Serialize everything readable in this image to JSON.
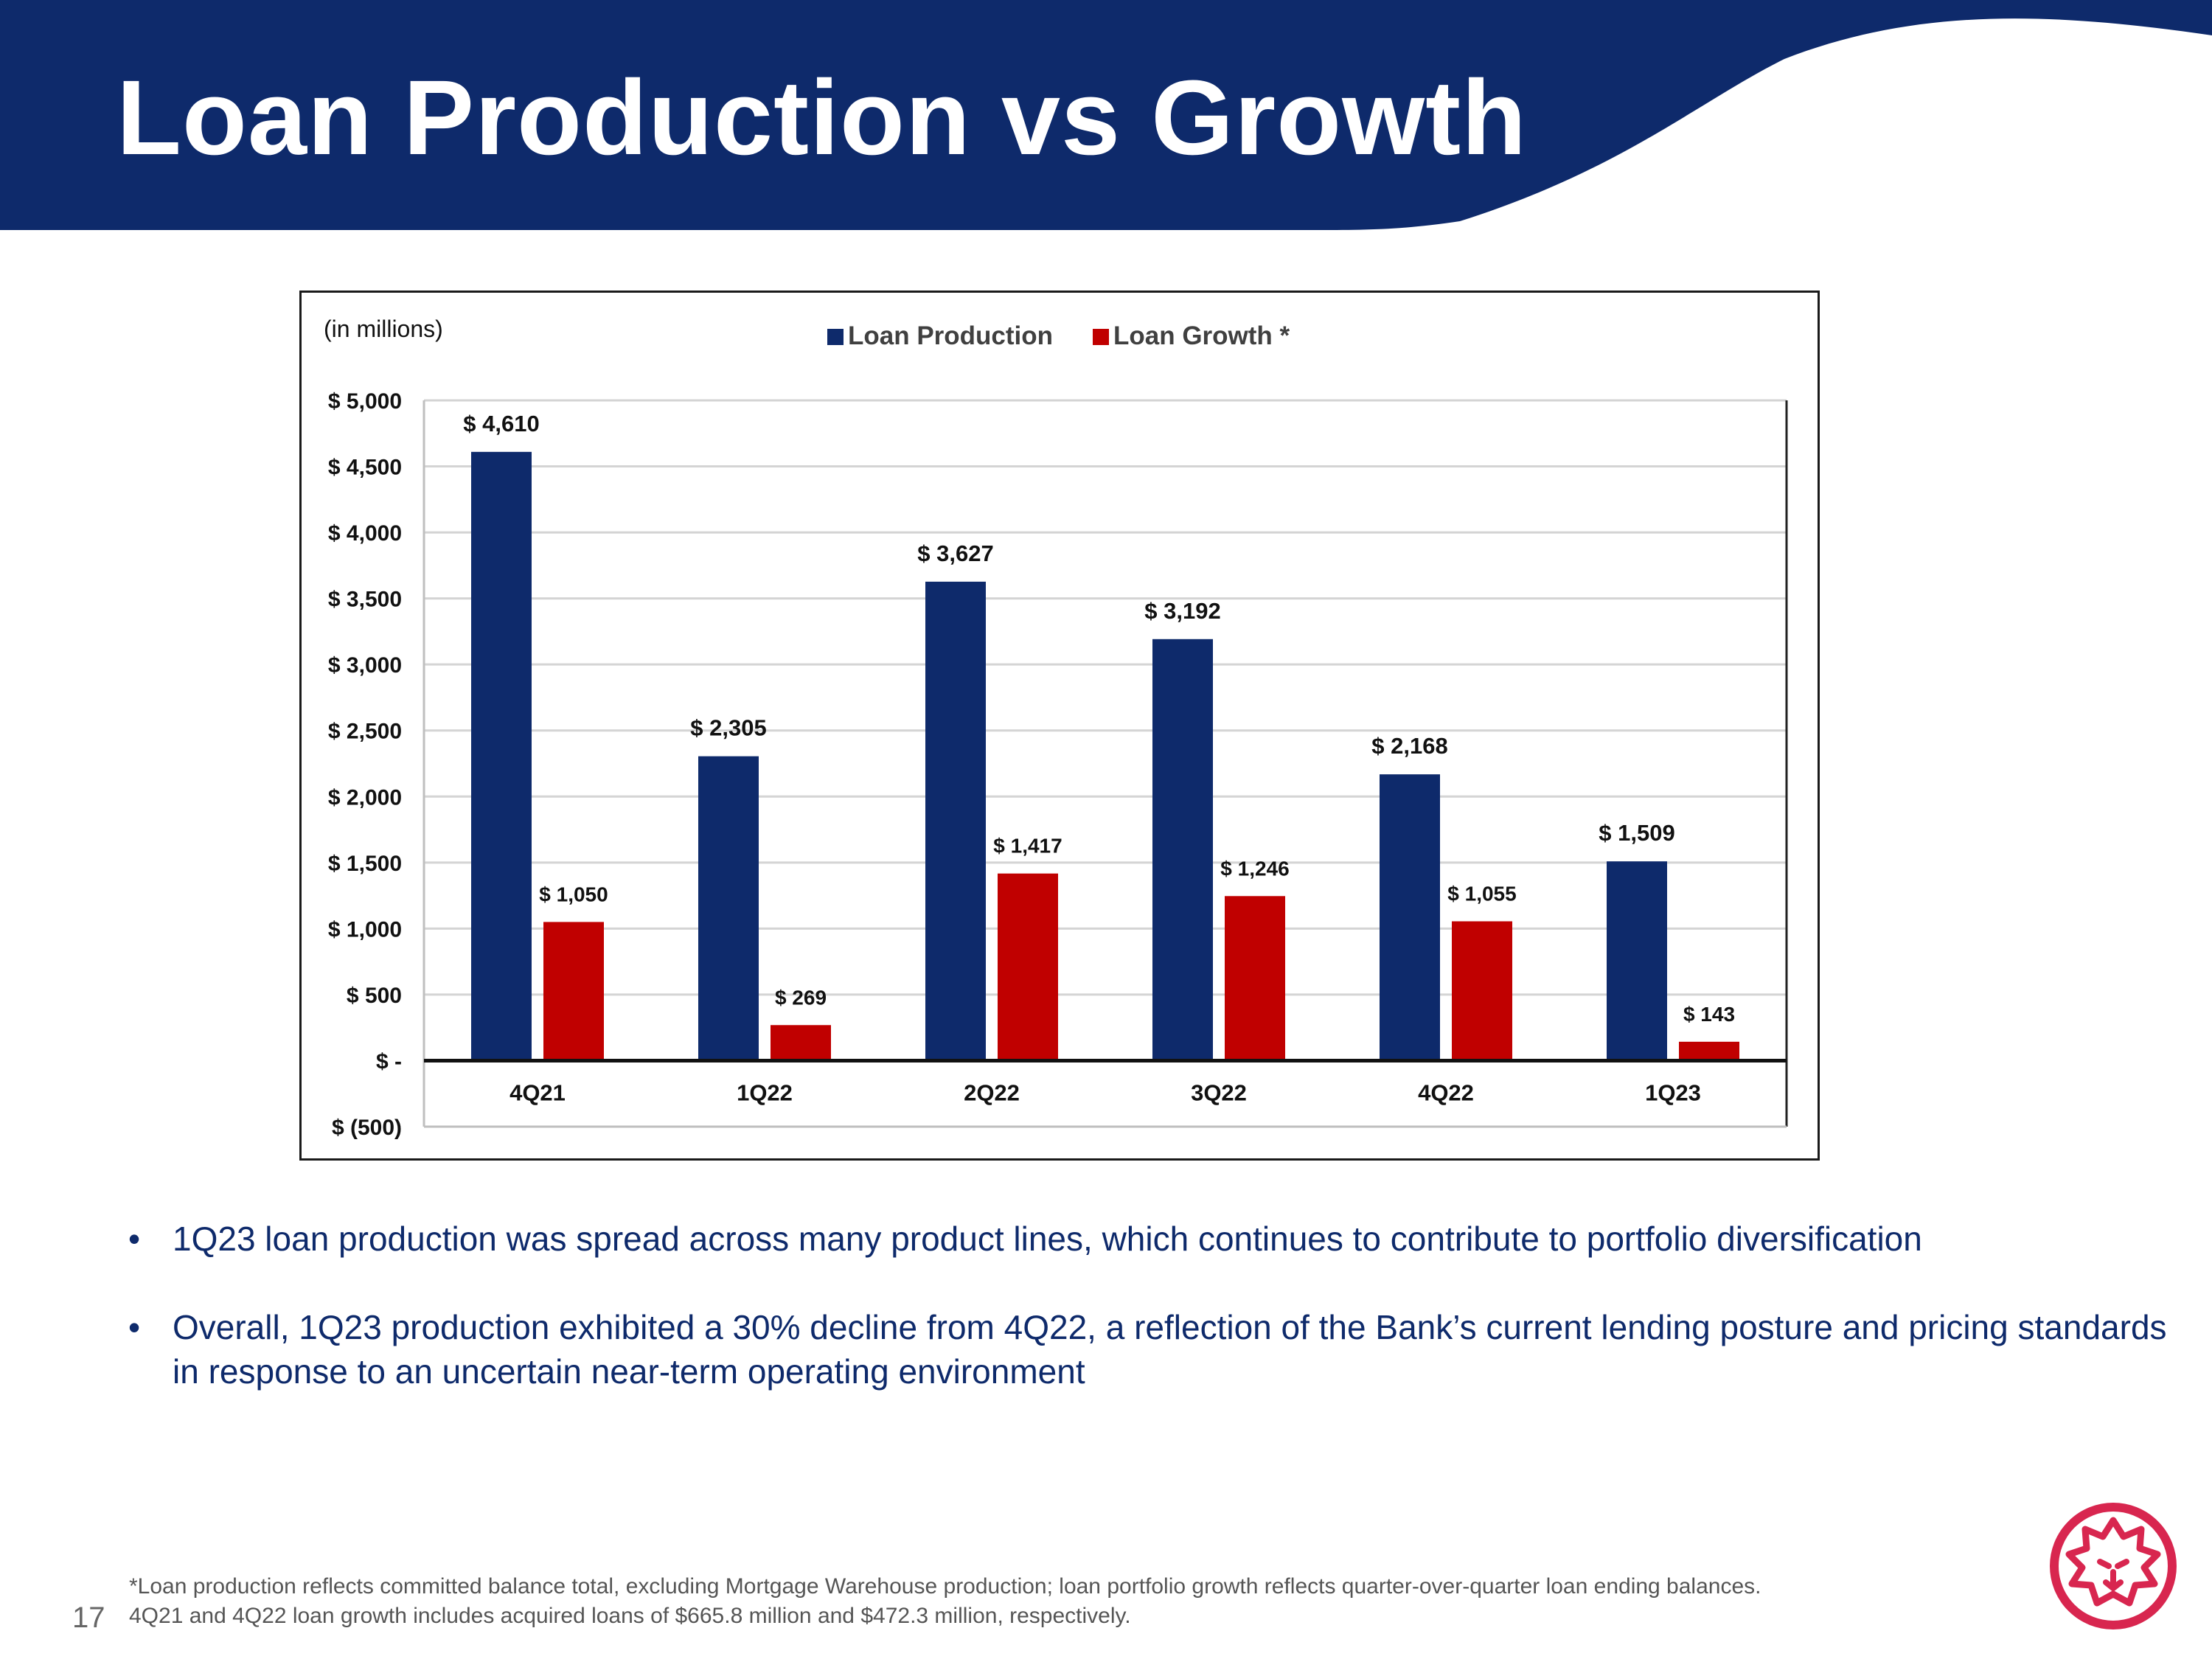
{
  "slide": {
    "title": "Loan Production vs Growth",
    "page_number": "17",
    "bullets": [
      "1Q23 loan production was spread across many product lines, which continues to contribute to portfolio diversification",
      "Overall, 1Q23 production exhibited a 30% decline from 4Q22, a reflection of the Bank’s current lending posture and pricing standards in response to an uncertain near-term operating environment"
    ],
    "footnote_lines": [
      "*Loan production reflects committed balance total, excluding Mortgage Warehouse production; loan portfolio growth reflects quarter-over-quarter loan ending balances.",
      "4Q21 and 4Q22 loan growth includes acquired loans of $665.8 million and $472.3 million, respectively."
    ],
    "bullet_symbol": "•",
    "colors": {
      "navy": "#0e2a6b",
      "red": "#c00000",
      "logo_red": "#d8264f"
    },
    "logo_icon": "lion-head-icon"
  },
  "chart_data": {
    "type": "bar",
    "unit_note": "(in millions)",
    "categories": [
      "4Q21",
      "1Q22",
      "2Q22",
      "3Q22",
      "4Q22",
      "1Q23"
    ],
    "series": [
      {
        "name": "Loan Production",
        "color": "#0e2a6b",
        "values": [
          4610,
          2305,
          3627,
          3192,
          2168,
          1509
        ],
        "labels": [
          "$ 4,610",
          "$ 2,305",
          "$ 3,627",
          "$ 3,192",
          "$ 2,168",
          "$ 1,509"
        ]
      },
      {
        "name": "Loan Growth *",
        "color": "#c00000",
        "values": [
          1050,
          269,
          1417,
          1246,
          1055,
          143
        ],
        "labels": [
          "$ 1,050",
          "$ 269",
          "$ 1,417",
          "$ 1,246",
          "$ 1,055",
          "$ 143"
        ]
      }
    ],
    "ylim": [
      -500,
      5000
    ],
    "y_ticks": [
      -500,
      0,
      500,
      1000,
      1500,
      2000,
      2500,
      3000,
      3500,
      4000,
      4500,
      5000
    ],
    "y_tick_labels": [
      "$ (500)",
      "$ -",
      "$ 500",
      "$ 1,000",
      "$ 1,500",
      "$ 2,000",
      "$ 2,500",
      "$ 3,000",
      "$ 3,500",
      "$ 4,000",
      "$ 4,500",
      "$ 5,000"
    ],
    "grid": true,
    "legend": "top-center",
    "title": "",
    "xlabel": "",
    "ylabel": ""
  }
}
